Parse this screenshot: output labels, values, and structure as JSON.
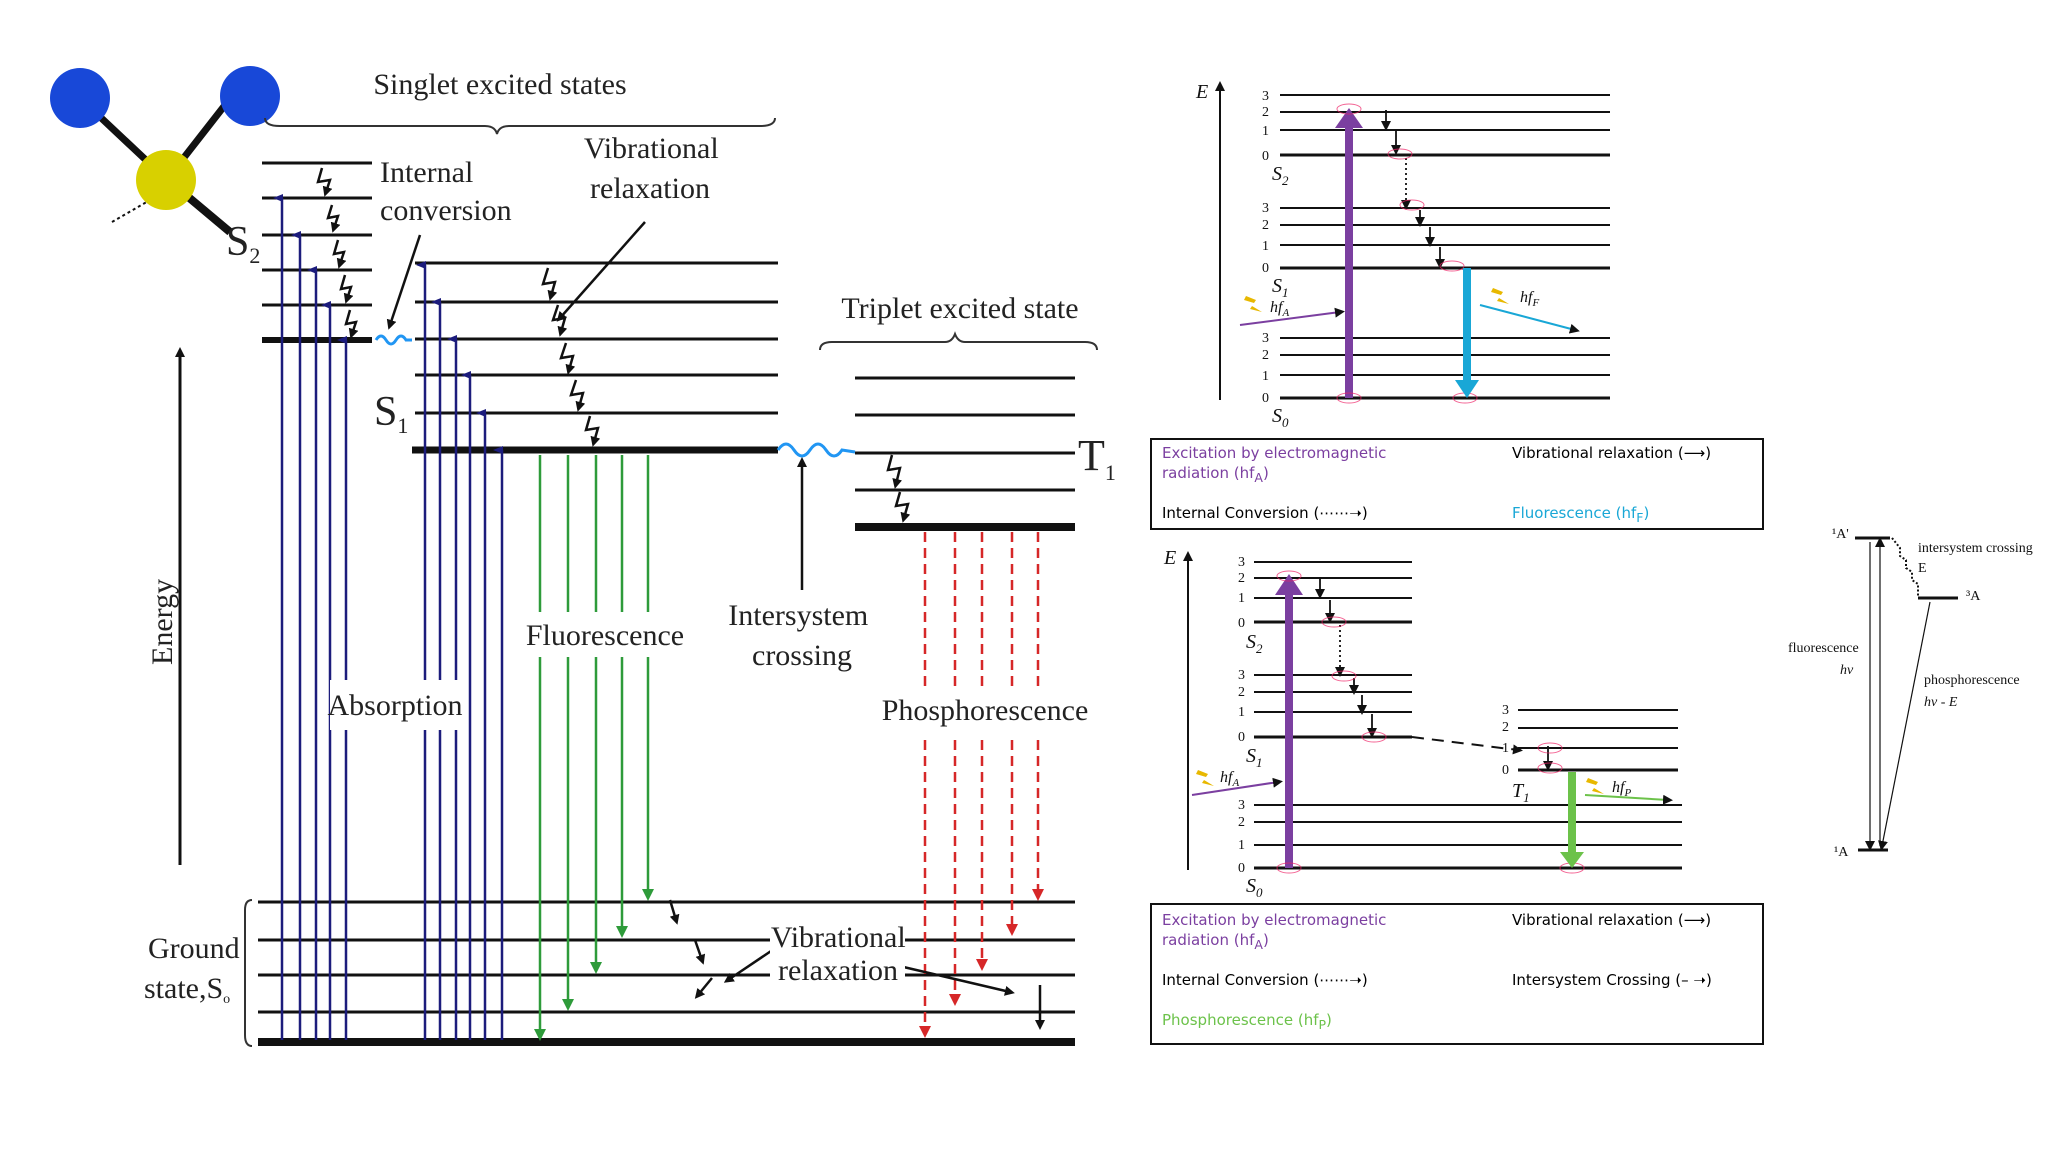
{
  "colors": {
    "absorption": "#1c1c7c",
    "fluorescence": "#2e9b3a",
    "phosphorescence": "#d62728",
    "isc_wave": "#2196f3",
    "purple": "#7b3fa0",
    "cyan": "#19a7d6",
    "light_green": "#6cc24a",
    "molecule_blue": "#1848d8",
    "molecule_yellow": "#d8d000"
  },
  "jablonski": {
    "singlet_label": "Singlet excited states",
    "internal_conversion": [
      "Internal",
      "conversion"
    ],
    "vibrational_relaxation_top": [
      "Vibrational",
      "relaxation"
    ],
    "triplet_label": "Triplet excited state",
    "s2": "S",
    "s2_sub": "2",
    "s1": "S",
    "s1_sub": "1",
    "t1": "T",
    "t1_sub": "1",
    "energy": "Energy",
    "absorption": "Absorption",
    "fluorescence": "Fluorescence",
    "intersystem": [
      "Intersystem",
      "crossing"
    ],
    "phosphorescence": "Phosphorescence",
    "ground": [
      "Ground",
      "state,S"
    ],
    "ground_sub": "o",
    "vibrational_relaxation_bottom": [
      "Vibrational",
      "relaxation"
    ]
  },
  "diagram_top": {
    "E": "E",
    "levels": [
      "3",
      "2",
      "1",
      "0"
    ],
    "s2": "S",
    "s2_sub": "2",
    "s1": "S",
    "s1_sub": "1",
    "s0": "S",
    "s0_sub": "0",
    "hfA": "hf",
    "hfA_sub": "A",
    "hfF": "hf",
    "hfF_sub": "F"
  },
  "legend_top": {
    "excitation": "Excitation by electromagnetic",
    "excitation2": "radiation (hf",
    "excitation2_sub": "A",
    "vib": "Vibrational relaxation (⟶)",
    "ic": "Internal Conversion (⋯⋯➝)",
    "fluor": "Fluorescence (hf",
    "fluor_sub": "F"
  },
  "diagram_bottom": {
    "E": "E",
    "levels": [
      "3",
      "2",
      "1",
      "0"
    ],
    "t_levels": [
      "3",
      "2",
      "1",
      "0"
    ],
    "s2": "S",
    "s2_sub": "2",
    "s1": "S",
    "s1_sub": "1",
    "s0": "S",
    "s0_sub": "0",
    "t1": "T",
    "t1_sub": "1",
    "hfA": "hf",
    "hfA_sub": "A",
    "hfP": "hf",
    "hfP_sub": "P"
  },
  "legend_bottom": {
    "excitation": "Excitation by electromagnetic",
    "excitation2": "radiation (hf",
    "excitation2_sub": "A",
    "vib": "Vibrational relaxation (⟶)",
    "ic": "Internal Conversion (⋯⋯➝)",
    "isc": "Intersystem Crossing (– ➝)",
    "phos": "Phosphorescence (hf",
    "phos_sub": "P"
  },
  "small_diagram": {
    "upper": "¹A'",
    "isc": "intersystem crossing",
    "E": "E",
    "triplet": "³A",
    "fluorescence": "fluorescence",
    "hv": "hν",
    "phosphorescence": "phosphorescence",
    "hvE": "hν - E",
    "lower": "¹A"
  }
}
